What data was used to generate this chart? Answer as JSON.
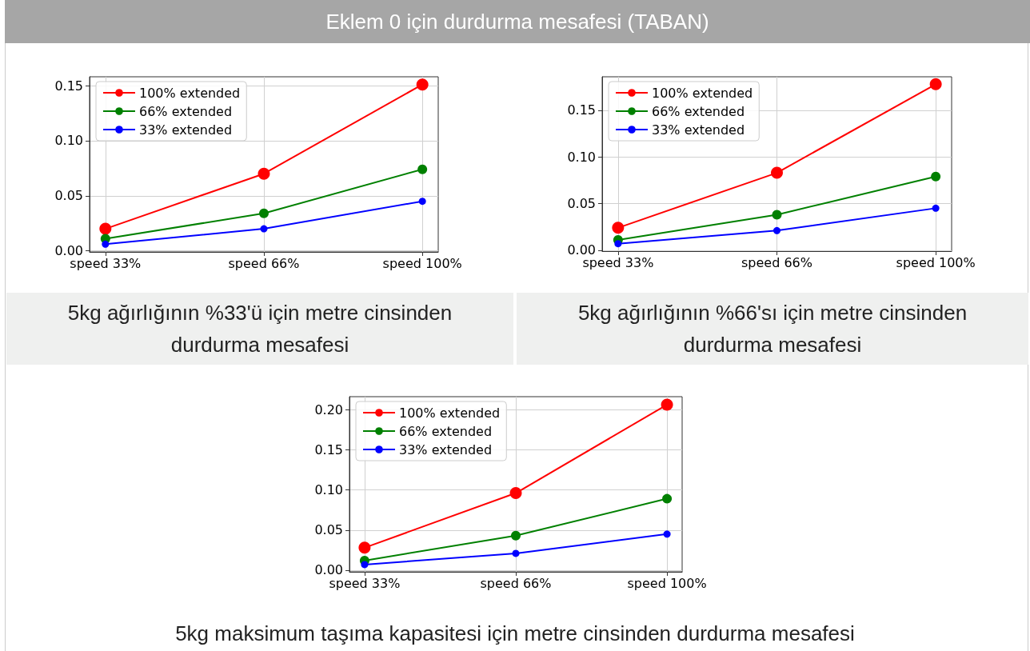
{
  "chart_data": [
    {
      "type": "line",
      "title": "Eklem 0 için durdurma mesafesi (TABAN)",
      "annotations": [
        "5kg ağırlığının %33'ü için metre cinsinden durdurma mesafesi"
      ],
      "categories": [
        "speed 33%",
        "speed 66%",
        "speed 100%"
      ],
      "series": [
        {
          "name": "100% extended",
          "color": "#ff0000",
          "values": [
            0.02,
            0.07,
            0.151
          ]
        },
        {
          "name": "66% extended",
          "color": "#008000",
          "values": [
            0.011,
            0.034,
            0.074
          ]
        },
        {
          "name": "33% extended",
          "color": "#0000ff",
          "values": [
            0.006,
            0.02,
            0.045
          ]
        }
      ],
      "ylim": [
        -0.001,
        0.158
      ],
      "yticks": [
        {
          "value": 0,
          "label": "0.00"
        },
        {
          "value": 0.05,
          "label": "0.05"
        },
        {
          "value": 0.1,
          "label": "0.10"
        },
        {
          "value": 0.15,
          "label": "0.15"
        }
      ],
      "grid": true,
      "legend": "top left",
      "marker": "circle"
    },
    {
      "type": "line",
      "annotations": [
        "5kg ağırlığının %66'sı için metre cinsinden durdurma mesafesi"
      ],
      "categories": [
        "speed 33%",
        "speed 66%",
        "speed 100%"
      ],
      "series": [
        {
          "name": "100% extended",
          "color": "#ff0000",
          "values": [
            0.024,
            0.083,
            0.178
          ]
        },
        {
          "name": "66% extended",
          "color": "#008000",
          "values": [
            0.011,
            0.038,
            0.079
          ]
        },
        {
          "name": "33% extended",
          "color": "#0000ff",
          "values": [
            0.007,
            0.021,
            0.045
          ]
        }
      ],
      "ylim": [
        -0.001,
        0.186
      ],
      "yticks": [
        {
          "value": 0,
          "label": "0.00"
        },
        {
          "value": 0.05,
          "label": "0.05"
        },
        {
          "value": 0.1,
          "label": "0.10"
        },
        {
          "value": 0.15,
          "label": "0.15"
        }
      ],
      "grid": true,
      "legend": "top left",
      "marker": "circle"
    },
    {
      "type": "line",
      "annotations": [
        "5kg maksimum taşıma kapasitesi için metre cinsinden durdurma mesafesi"
      ],
      "categories": [
        "speed 33%",
        "speed 66%",
        "speed 100%"
      ],
      "series": [
        {
          "name": "100% extended",
          "color": "#ff0000",
          "values": [
            0.028,
            0.096,
            0.206
          ]
        },
        {
          "name": "66% extended",
          "color": "#008000",
          "values": [
            0.012,
            0.043,
            0.089
          ]
        },
        {
          "name": "33% extended",
          "color": "#0000ff",
          "values": [
            0.007,
            0.021,
            0.045
          ]
        }
      ],
      "ylim": [
        -0.002,
        0.216
      ],
      "yticks": [
        {
          "value": 0,
          "label": "0.00"
        },
        {
          "value": 0.05,
          "label": "0.05"
        },
        {
          "value": 0.1,
          "label": "0.10"
        },
        {
          "value": 0.15,
          "label": "0.15"
        },
        {
          "value": 0.2,
          "label": "0.20"
        }
      ],
      "grid": true,
      "legend": "top left",
      "marker": "circle"
    }
  ]
}
